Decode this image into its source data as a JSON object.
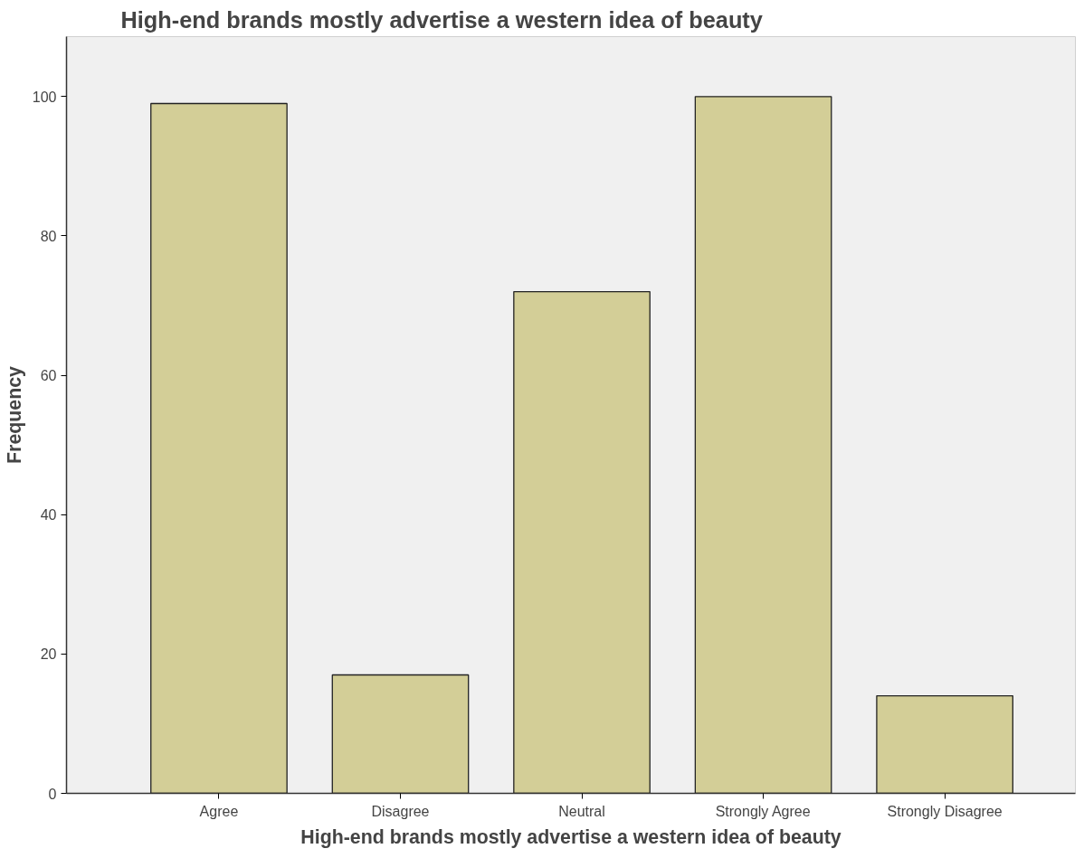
{
  "chart_data": {
    "type": "bar",
    "title": "High-end brands mostly advertise a western idea of beauty",
    "xlabel": "High-end brands mostly advertise a western idea of beauty",
    "ylabel": "Frequency",
    "categories": [
      "Agree",
      "Disagree",
      "Neutral",
      "Strongly Agree",
      "Strongly Disagree"
    ],
    "values": [
      99,
      17,
      72,
      100,
      14
    ],
    "color": "#d3ce97",
    "ylim": [
      0,
      108.6
    ],
    "yticks": [
      0,
      20,
      40,
      60,
      80,
      100
    ],
    "grid": false
  }
}
